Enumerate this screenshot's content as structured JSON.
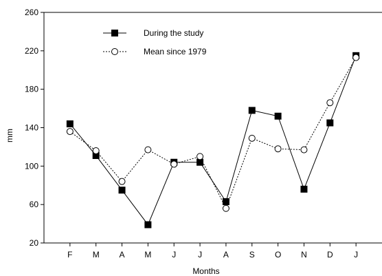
{
  "chart_data": {
    "type": "line",
    "xlabel": "Months",
    "ylabel": "mm",
    "categories": [
      "F",
      "M",
      "A",
      "M",
      "J",
      "J",
      "A",
      "S",
      "O",
      "N",
      "D",
      "J"
    ],
    "ylim": [
      20,
      260
    ],
    "yticks": [
      20,
      60,
      100,
      140,
      180,
      220,
      260
    ],
    "grid": false,
    "legend_position": "top-left",
    "series": [
      {
        "name": "During the study",
        "line_style": "solid",
        "marker": "filled-square",
        "color": "#000000",
        "values": [
          144,
          111,
          75,
          39,
          104,
          104,
          63,
          158,
          152,
          76,
          145,
          215
        ]
      },
      {
        "name": "Mean since 1979",
        "line_style": "dotted",
        "marker": "open-circle",
        "color": "#000000",
        "values": [
          136,
          116,
          84,
          117,
          102,
          110,
          56,
          129,
          118,
          117,
          166,
          213
        ]
      }
    ]
  }
}
